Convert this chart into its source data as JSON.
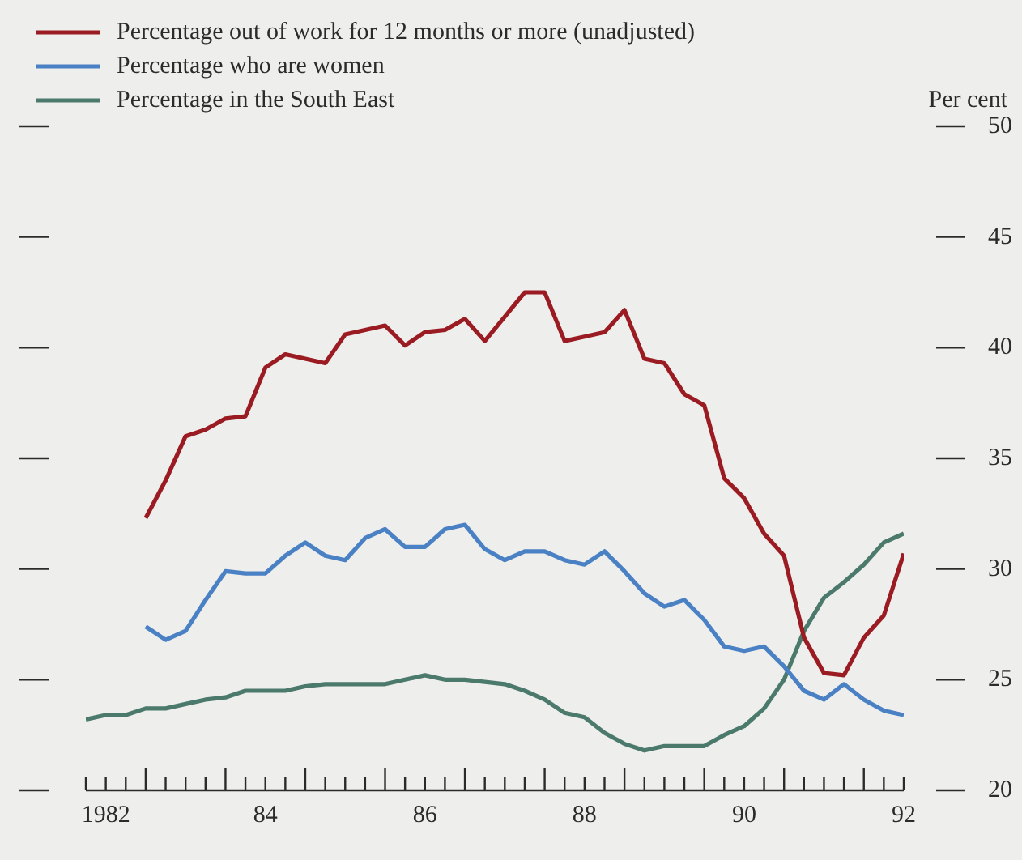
{
  "chart_data": {
    "type": "line",
    "ylabel": "Per cent",
    "legend": "top left",
    "xlim": [
      1981.75,
      1992
    ],
    "xticks": [
      {
        "value": 1981.75,
        "label": null
      },
      {
        "value": 1982,
        "label": "1982"
      },
      {
        "value": 1982.25,
        "label": null
      },
      {
        "value": 1982.5,
        "label": null
      },
      {
        "value": 1982.75,
        "label": null
      },
      {
        "value": 1983,
        "label": null
      },
      {
        "value": 1983.25,
        "label": null
      },
      {
        "value": 1983.5,
        "label": null
      },
      {
        "value": 1983.75,
        "label": null
      },
      {
        "value": 1984,
        "label": "84"
      },
      {
        "value": 1984.25,
        "label": null
      },
      {
        "value": 1984.5,
        "label": null
      },
      {
        "value": 1984.75,
        "label": null
      },
      {
        "value": 1985,
        "label": null
      },
      {
        "value": 1985.25,
        "label": null
      },
      {
        "value": 1985.5,
        "label": null
      },
      {
        "value": 1985.75,
        "label": null
      },
      {
        "value": 1986,
        "label": "86"
      },
      {
        "value": 1986.25,
        "label": null
      },
      {
        "value": 1986.5,
        "label": null
      },
      {
        "value": 1986.75,
        "label": null
      },
      {
        "value": 1987,
        "label": null
      },
      {
        "value": 1987.25,
        "label": null
      },
      {
        "value": 1987.5,
        "label": null
      },
      {
        "value": 1987.75,
        "label": null
      },
      {
        "value": 1988,
        "label": "88"
      },
      {
        "value": 1988.25,
        "label": null
      },
      {
        "value": 1988.5,
        "label": null
      },
      {
        "value": 1988.75,
        "label": null
      },
      {
        "value": 1989,
        "label": null
      },
      {
        "value": 1989.25,
        "label": null
      },
      {
        "value": 1989.5,
        "label": null
      },
      {
        "value": 1989.75,
        "label": null
      },
      {
        "value": 1990,
        "label": "90"
      },
      {
        "value": 1990.25,
        "label": null
      },
      {
        "value": 1990.5,
        "label": null
      },
      {
        "value": 1990.75,
        "label": null
      },
      {
        "value": 1991,
        "label": null
      },
      {
        "value": 1991.25,
        "label": null
      },
      {
        "value": 1991.5,
        "label": null
      },
      {
        "value": 1991.75,
        "label": null
      },
      {
        "value": 1992,
        "label": "92"
      }
    ],
    "ylim": [
      20,
      50
    ],
    "yticks": [
      20,
      25,
      30,
      35,
      40,
      45,
      50
    ],
    "series": [
      {
        "name": "Percentage out of work for 12 months or more (unadjusted)",
        "color": "#9b1b22",
        "x": [
          1982.5,
          1982.75,
          1983,
          1983.25,
          1983.5,
          1983.75,
          1984,
          1984.25,
          1984.5,
          1984.75,
          1985,
          1985.25,
          1985.5,
          1985.75,
          1986,
          1986.25,
          1986.5,
          1986.75,
          1987,
          1987.25,
          1987.5,
          1987.75,
          1988,
          1988.25,
          1988.5,
          1988.75,
          1989,
          1989.25,
          1989.5,
          1989.75,
          1990,
          1990.25,
          1990.5,
          1990.75,
          1991,
          1991.25,
          1991.5,
          1991.75,
          1992
        ],
        "values": [
          32.3,
          34.0,
          36.0,
          36.3,
          36.8,
          36.9,
          39.1,
          39.7,
          39.5,
          39.3,
          40.6,
          40.8,
          41.0,
          40.1,
          40.7,
          40.8,
          41.3,
          40.3,
          41.4,
          42.5,
          42.5,
          40.3,
          40.5,
          40.7,
          41.7,
          39.5,
          39.3,
          37.9,
          37.4,
          34.1,
          33.2,
          31.6,
          30.6,
          26.9,
          25.3,
          25.2,
          26.9,
          27.9,
          30.7
        ]
      },
      {
        "name": "Percentage who are women",
        "color": "#4a80c4",
        "x": [
          1982.5,
          1982.75,
          1983,
          1983.25,
          1983.5,
          1983.75,
          1984,
          1984.25,
          1984.5,
          1984.75,
          1985,
          1985.25,
          1985.5,
          1985.75,
          1986,
          1986.25,
          1986.5,
          1986.75,
          1987,
          1987.25,
          1987.5,
          1987.75,
          1988,
          1988.25,
          1988.5,
          1988.75,
          1989,
          1989.25,
          1989.5,
          1989.75,
          1990,
          1990.25,
          1990.5,
          1990.75,
          1991,
          1991.25,
          1991.5,
          1991.75,
          1992
        ],
        "values": [
          27.4,
          26.8,
          27.2,
          28.6,
          29.9,
          29.8,
          29.8,
          30.6,
          31.2,
          30.6,
          30.4,
          31.4,
          31.8,
          31.0,
          31.0,
          31.8,
          32.0,
          30.9,
          30.4,
          30.8,
          30.8,
          30.4,
          30.2,
          30.8,
          29.9,
          28.9,
          28.3,
          28.6,
          27.7,
          26.5,
          26.3,
          26.5,
          25.6,
          24.5,
          24.1,
          24.8,
          24.1,
          23.6,
          23.4
        ]
      },
      {
        "name": "Percentage in the South East",
        "color": "#4b7a6c",
        "x": [
          1981.75,
          1982,
          1982.25,
          1982.5,
          1982.75,
          1983,
          1983.25,
          1983.5,
          1983.75,
          1984,
          1984.25,
          1984.5,
          1984.75,
          1985,
          1985.25,
          1985.5,
          1985.75,
          1986,
          1986.25,
          1986.5,
          1986.75,
          1987,
          1987.25,
          1987.5,
          1987.75,
          1988,
          1988.25,
          1988.5,
          1988.75,
          1989,
          1989.25,
          1989.5,
          1989.75,
          1990,
          1990.25,
          1990.5,
          1990.75,
          1991,
          1991.25,
          1991.5,
          1991.75,
          1992
        ],
        "values": [
          23.2,
          23.4,
          23.4,
          23.7,
          23.7,
          23.9,
          24.1,
          24.2,
          24.5,
          24.5,
          24.5,
          24.7,
          24.8,
          24.8,
          24.8,
          24.8,
          25.0,
          25.2,
          25.0,
          25.0,
          24.9,
          24.8,
          24.5,
          24.1,
          23.5,
          23.3,
          22.6,
          22.1,
          21.8,
          22.0,
          22.0,
          22.0,
          22.5,
          22.9,
          23.7,
          25.0,
          27.2,
          28.7,
          29.4,
          30.2,
          31.2,
          31.6
        ]
      }
    ]
  }
}
